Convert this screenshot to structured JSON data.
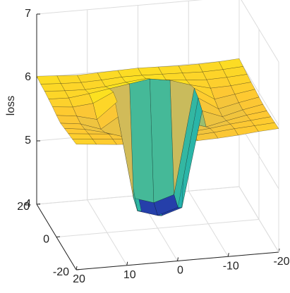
{
  "chart_data": {
    "type": "surface",
    "zlabel": "loss",
    "colormap": "parula",
    "grid": true,
    "x": [
      -20,
      -16,
      -12,
      -8,
      -4,
      0,
      4,
      8,
      12,
      16,
      20
    ],
    "y": [
      -20,
      -16,
      -12,
      -8,
      -4,
      0,
      4,
      8,
      12,
      16,
      20
    ],
    "z": [
      [
        5.95,
        5.93,
        5.9,
        5.88,
        5.87,
        5.87,
        5.88,
        5.9,
        5.92,
        5.95,
        5.98
      ],
      [
        5.94,
        5.92,
        5.9,
        5.87,
        5.85,
        5.85,
        5.86,
        5.88,
        5.9,
        5.93,
        5.96
      ],
      [
        5.93,
        5.9,
        5.87,
        5.83,
        5.8,
        5.78,
        5.8,
        5.84,
        5.88,
        5.91,
        5.94
      ],
      [
        5.92,
        5.88,
        5.82,
        5.75,
        5.85,
        5.9,
        5.82,
        5.7,
        5.8,
        5.88,
        5.92
      ],
      [
        5.92,
        5.86,
        5.78,
        5.9,
        4.4,
        4.3,
        4.4,
        5.95,
        5.75,
        5.86,
        5.9
      ],
      [
        5.93,
        5.87,
        5.8,
        6.0,
        4.3,
        4.2,
        4.3,
        6.05,
        5.8,
        5.88,
        5.92
      ],
      [
        5.95,
        5.9,
        5.85,
        6.05,
        4.4,
        4.3,
        4.4,
        6.1,
        5.95,
        5.92,
        5.95
      ],
      [
        5.96,
        5.93,
        5.92,
        6.0,
        6.1,
        6.15,
        6.1,
        6.05,
        6.0,
        5.96,
        5.97
      ],
      [
        5.98,
        5.96,
        5.95,
        5.97,
        6.0,
        6.05,
        6.02,
        5.98,
        5.96,
        5.97,
        5.99
      ],
      [
        6.0,
        5.98,
        5.97,
        5.98,
        5.99,
        6.0,
        6.0,
        5.98,
        5.97,
        5.98,
        6.0
      ],
      [
        6.02,
        6.0,
        5.99,
        5.99,
        6.0,
        6.01,
        6.0,
        5.99,
        5.98,
        6.0,
        6.02
      ]
    ],
    "xlim": [
      -20,
      20
    ],
    "ylim": [
      -20,
      20
    ],
    "zlim": [
      4,
      7
    ],
    "xticks": [
      -20,
      -10,
      0,
      10,
      20
    ],
    "yticks": [
      -20,
      0,
      20
    ],
    "zticks": [
      4,
      5,
      6,
      7
    ]
  }
}
